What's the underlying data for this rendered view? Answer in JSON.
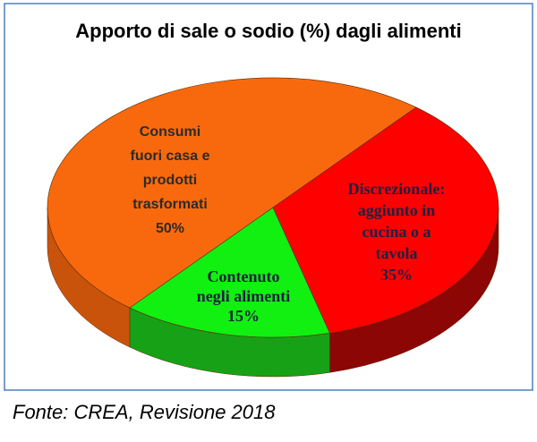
{
  "chart_data": {
    "type": "pie3d",
    "title": "Apporto di sale o sodio (%) dagli alimenti",
    "categories": [
      [
        "Consumi",
        "fuori casa e",
        "prodotti",
        "trasformati"
      ],
      [
        "Discrezionale:",
        "aggiunto in",
        "cucina o a",
        "tavola"
      ],
      [
        "Contenuto",
        "negli alimenti"
      ]
    ],
    "values": [
      50,
      35,
      15
    ],
    "value_labels": [
      "50%",
      "35%",
      "15%"
    ],
    "colors": [
      "#f8690e",
      "#ff0000",
      "#11f011"
    ],
    "side_colors": [
      "#c9530b",
      "#8c0606",
      "#17a117"
    ],
    "source": "Fonte: CREA, Revisione 2018"
  }
}
